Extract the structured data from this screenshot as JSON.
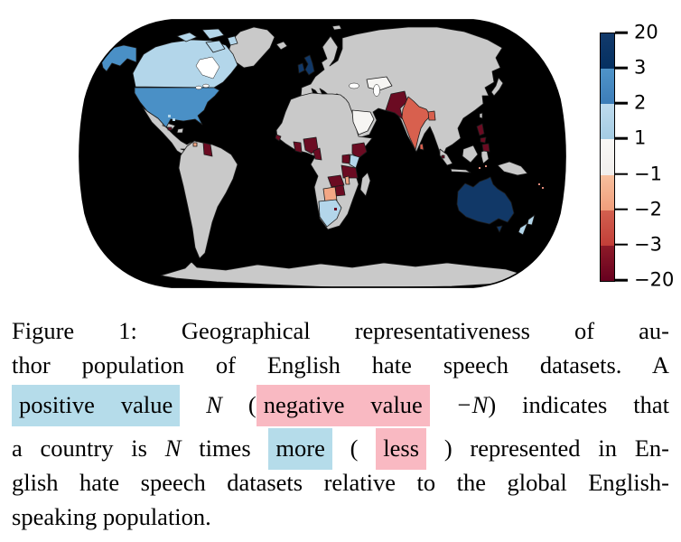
{
  "figure": {
    "type": "choropleth_world_map",
    "map": {
      "ocean_color": "#ffffff",
      "no_data_color": "#c9c9c9",
      "country_border_color": "#1c1c1c",
      "projection_outline_color": "#000000",
      "buckets": [
        {
          "range": "3 to 20",
          "color": "#113867"
        },
        {
          "range": "2 to 3",
          "color": "#4a90c6"
        },
        {
          "range": "1 to 2",
          "color": "#b3d6ea"
        },
        {
          "range": "-1 to 1",
          "color": "#f6f5f3"
        },
        {
          "range": "-2 to -1",
          "color": "#f3a785"
        },
        {
          "range": "-3 to -2",
          "color": "#d8604e"
        },
        {
          "range": "-20 to -3",
          "color": "#6b0b22"
        }
      ],
      "countries": [
        {
          "id": "united-kingdom",
          "name": "United Kingdom",
          "bucket": "3 to 20",
          "color": "#113867"
        },
        {
          "id": "ireland",
          "name": "Ireland",
          "bucket": "3 to 20",
          "color": "#113867"
        },
        {
          "id": "australia",
          "name": "Australia",
          "bucket": "3 to 20",
          "color": "#113867"
        },
        {
          "id": "united-states",
          "name": "United States",
          "bucket": "2 to 3",
          "color": "#4a90c6"
        },
        {
          "id": "canada",
          "name": "Canada",
          "bucket": "1 to 2",
          "color": "#b3d6ea"
        },
        {
          "id": "new-zealand",
          "name": "New Zealand",
          "bucket": "1 to 2",
          "color": "#b3d6ea"
        },
        {
          "id": "south-africa",
          "name": "South Africa",
          "bucket": "1 to 2",
          "color": "#b3d6ea"
        },
        {
          "id": "kenya",
          "name": "Kenya",
          "bucket": "1 to 2",
          "color": "#b3d6ea"
        },
        {
          "id": "bahamas",
          "name": "Bahamas",
          "bucket": "1 to 2",
          "color": "#b3d6ea"
        },
        {
          "id": "saudi-arabia",
          "name": "Saudi Arabia",
          "bucket": "-1 to 1",
          "color": "#f6f5f3"
        },
        {
          "id": "kazakhstan",
          "name": "Kazakhstan",
          "bucket": "-1 to 1",
          "color": "#f6f5f3"
        },
        {
          "id": "botswana",
          "name": "Botswana",
          "bucket": "-2 to -1",
          "color": "#f3a785"
        },
        {
          "id": "trinidad-and-tobago",
          "name": "Trinidad and Tobago",
          "bucket": "-2 to -1",
          "color": "#f3a785"
        },
        {
          "id": "malawi",
          "name": "Malawi",
          "bucket": "-2 to -1",
          "color": "#f3a785"
        },
        {
          "id": "india",
          "name": "India",
          "bucket": "-3 to -2",
          "color": "#d8604e"
        },
        {
          "id": "bangladesh",
          "name": "Bangladesh",
          "bucket": "-3 to -2",
          "color": "#d8604e"
        },
        {
          "id": "sri-lanka",
          "name": "Sri Lanka",
          "bucket": "-3 to -2",
          "color": "#d8604e"
        },
        {
          "id": "fiji",
          "name": "Fiji",
          "bucket": "-3 to -2",
          "color": "#e08a7a"
        },
        {
          "id": "pakistan",
          "name": "Pakistan",
          "bucket": "-20 to -3",
          "color": "#6b0b22"
        },
        {
          "id": "philippines",
          "name": "Philippines",
          "bucket": "-20 to -3",
          "color": "#6b0b22"
        },
        {
          "id": "guyana",
          "name": "Guyana",
          "bucket": "-20 to -3",
          "color": "#6b0b22"
        },
        {
          "id": "jamaica",
          "name": "Jamaica",
          "bucket": "-20 to -3",
          "color": "#6b0b22"
        },
        {
          "id": "ghana",
          "name": "Ghana",
          "bucket": "-20 to -3",
          "color": "#6b0b22"
        },
        {
          "id": "nigeria",
          "name": "Nigeria",
          "bucket": "-20 to -3",
          "color": "#6b0b22"
        },
        {
          "id": "cameroon",
          "name": "Cameroon",
          "bucket": "-20 to -3",
          "color": "#6b0b22"
        },
        {
          "id": "sierra-leone",
          "name": "Sierra Leone",
          "bucket": "-20 to -3",
          "color": "#6b0b22"
        },
        {
          "id": "ethiopia",
          "name": "Ethiopia",
          "bucket": "-20 to -3",
          "color": "#6b0b22"
        },
        {
          "id": "uganda",
          "name": "Uganda",
          "bucket": "-20 to -3",
          "color": "#6b0b22"
        },
        {
          "id": "tanzania",
          "name": "Tanzania",
          "bucket": "-20 to -3",
          "color": "#6b0b22"
        },
        {
          "id": "zambia",
          "name": "Zambia",
          "bucket": "-20 to -3",
          "color": "#6b0b22"
        },
        {
          "id": "zimbabwe",
          "name": "Zimbabwe",
          "bucket": "-20 to -3",
          "color": "#6b0b22"
        },
        {
          "id": "lesotho",
          "name": "Lesotho",
          "bucket": "-20 to -3",
          "color": "#6b0b22"
        },
        {
          "id": "singapore",
          "name": "Singapore",
          "bucket": "-20 to -3",
          "color": "#6b0b22"
        }
      ]
    },
    "colorbar": {
      "tick_labels": [
        "20",
        "3",
        "2",
        "1",
        "−1",
        "−2",
        "−3",
        "−20"
      ],
      "segments": [
        {
          "from": "3",
          "to": "20",
          "top": "#123a6b",
          "bottom": "#053061"
        },
        {
          "from": "2",
          "to": "3",
          "top": "#4f94c9",
          "bottom": "#3d7db8"
        },
        {
          "from": "1",
          "to": "2",
          "top": "#bedbee",
          "bottom": "#a4cce3"
        },
        {
          "from": "−1",
          "to": "1",
          "top": "#f9f8f6",
          "bottom": "#f1eeec"
        },
        {
          "from": "−2",
          "to": "−1",
          "top": "#f8bf9d",
          "bottom": "#f09e7b"
        },
        {
          "from": "−3",
          "to": "−2",
          "top": "#d2604f",
          "bottom": "#c23e38"
        },
        {
          "from": "−20",
          "to": "−3",
          "top": "#8e1a28",
          "bottom": "#67001f"
        }
      ]
    }
  },
  "caption": {
    "highlight_blue": "#b5dcea",
    "highlight_pink": "#f9b9c2",
    "lines": [
      [
        {
          "t": "Figure 1: Geographical representativeness of au-",
          "s": "n"
        }
      ],
      [
        {
          "t": "thor population of English hate speech datasets. A",
          "s": "n"
        }
      ],
      [
        {
          "t": "positive value",
          "s": "hb"
        },
        {
          "t": " ",
          "s": "n"
        },
        {
          "t": "N",
          "s": "m"
        },
        {
          "t": " (",
          "s": "n"
        },
        {
          "t": "negative value",
          "s": "hp"
        },
        {
          "t": " ",
          "s": "n"
        },
        {
          "t": "−N",
          "s": "m"
        },
        {
          "t": ") indicates that",
          "s": "n"
        }
      ],
      [
        {
          "t": "a country is ",
          "s": "n"
        },
        {
          "t": "N",
          "s": "m"
        },
        {
          "t": " times ",
          "s": "n"
        },
        {
          "t": "more",
          "s": "hb"
        },
        {
          "t": " ( ",
          "s": "n"
        },
        {
          "t": "less",
          "s": "hp"
        },
        {
          "t": " ) represented in En-",
          "s": "n"
        }
      ],
      [
        {
          "t": "glish hate speech datasets relative to the global English-",
          "s": "n"
        }
      ],
      [
        {
          "t": "speaking population.",
          "s": "n"
        }
      ]
    ]
  }
}
